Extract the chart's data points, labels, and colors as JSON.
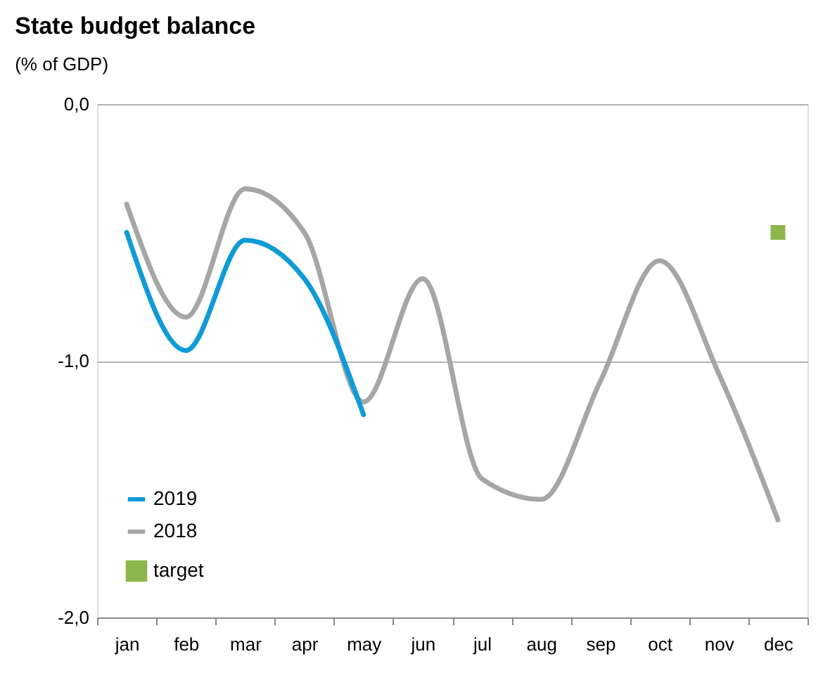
{
  "chart_data": {
    "type": "line",
    "title": "State budget balance",
    "ylabel": "(% of GDP)",
    "categories": [
      "jan",
      "feb",
      "mar",
      "apr",
      "may",
      "jun",
      "jul",
      "aug",
      "sep",
      "oct",
      "nov",
      "dec"
    ],
    "series": [
      {
        "name": "2019",
        "color": "#0e9bd8",
        "values": [
          -0.5,
          -0.96,
          -0.53,
          -0.68,
          -1.21,
          null,
          null,
          null,
          null,
          null,
          null,
          null
        ]
      },
      {
        "name": "2018",
        "color": "#a6a6a6",
        "values": [
          -0.39,
          -0.83,
          -0.33,
          -0.5,
          -1.16,
          -0.68,
          -1.46,
          -1.54,
          -1.08,
          -0.61,
          -1.05,
          -1.62
        ]
      },
      {
        "name": "target",
        "type": "scatter",
        "marker": "square",
        "color": "#8db64c",
        "values": [
          null,
          null,
          null,
          null,
          null,
          null,
          null,
          null,
          null,
          null,
          null,
          -0.5
        ]
      }
    ],
    "ylim": [
      -2,
      0
    ],
    "yticks": [
      {
        "value": 0,
        "label": "0,0"
      },
      {
        "value": -1,
        "label": "-1,0"
      },
      {
        "value": -2,
        "label": "-2,0"
      }
    ],
    "grid": "y",
    "legend": "bottom left"
  }
}
